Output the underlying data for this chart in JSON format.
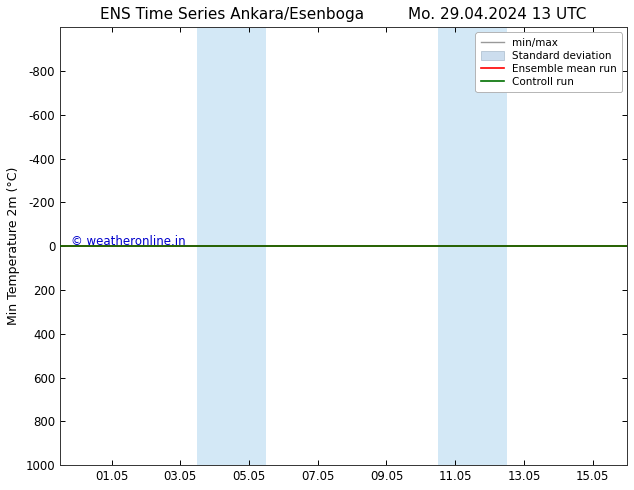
{
  "title_left": "ENS Time Series Ankara/Esenboga",
  "title_right": "Mo. 29.04.2024 13 UTC",
  "ylabel": "Min Temperature 2m (°C)",
  "watermark": "© weatheronline.in",
  "ylim_top": -1000,
  "ylim_bottom": 1000,
  "yticks": [
    -800,
    -600,
    -400,
    -200,
    0,
    200,
    400,
    600,
    800,
    1000
  ],
  "xtick_labels": [
    "01.05",
    "03.05",
    "05.05",
    "07.05",
    "09.05",
    "11.05",
    "13.05",
    "15.05"
  ],
  "xtick_positions": [
    2,
    4,
    6,
    8,
    10,
    12,
    14,
    16
  ],
  "xlim": [
    0.5,
    17
  ],
  "background_color": "#ffffff",
  "plot_bg_color": "#ffffff",
  "shade_color": "#cce4f5",
  "shade_alpha": 0.85,
  "shaded_bands": [
    {
      "x_start": 4.5,
      "x_end": 6.5
    },
    {
      "x_start": 11.5,
      "x_end": 13.5
    }
  ],
  "control_run_y": 0,
  "control_run_color": "#007000",
  "control_run_lw": 1.2,
  "ensemble_mean_color": "#ff0000",
  "ensemble_mean_lw": 1.2,
  "minmax_color": "#999999",
  "stddev_color": "#ccddee",
  "legend_labels": [
    "min/max",
    "Standard deviation",
    "Ensemble mean run",
    "Controll run"
  ],
  "legend_colors": [
    "#999999",
    "#ccddee",
    "#ff0000",
    "#007000"
  ],
  "title_fontsize": 11,
  "tick_fontsize": 8.5,
  "ylabel_fontsize": 9,
  "watermark_color": "#0000cc",
  "watermark_fontsize": 8.5,
  "legend_fontsize": 7.5
}
